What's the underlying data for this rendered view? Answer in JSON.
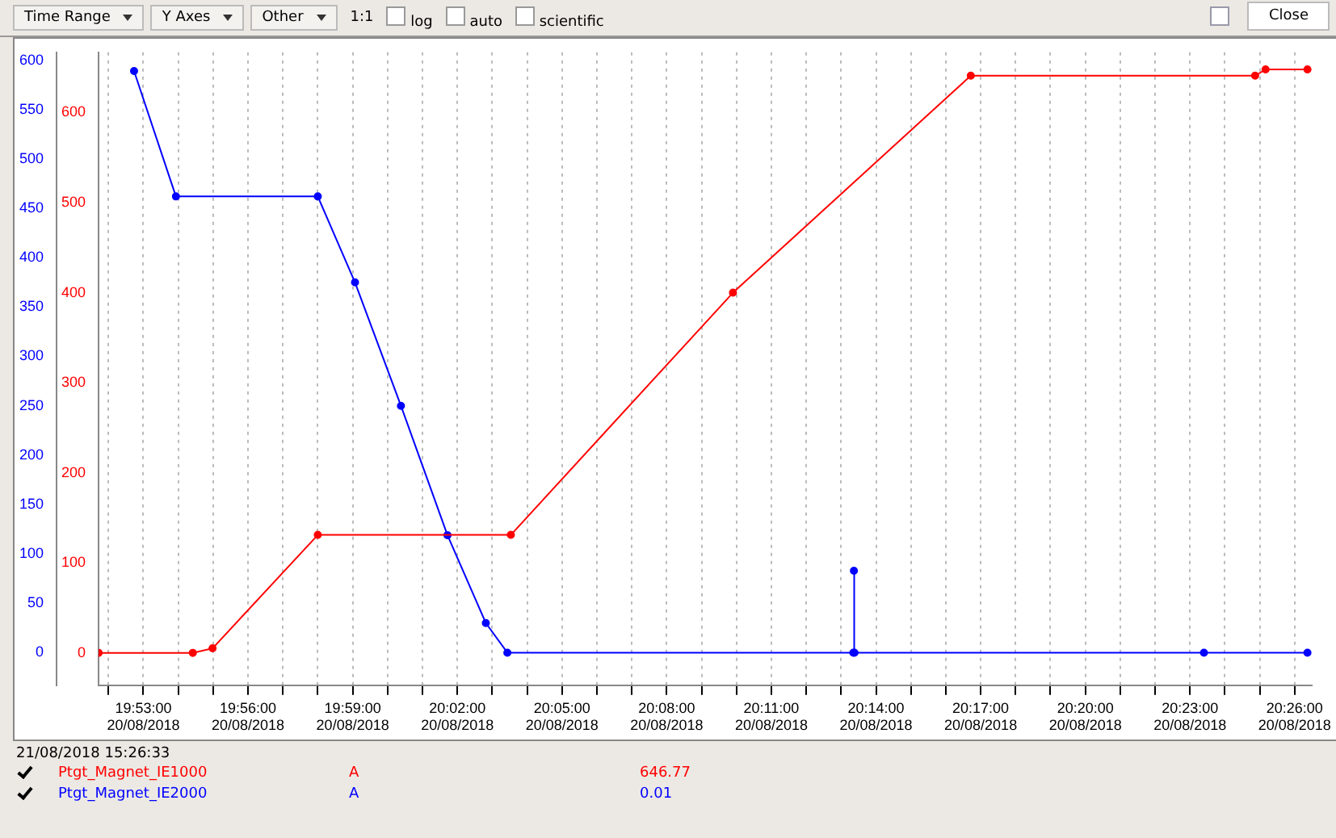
{
  "chart_data": {
    "type": "line",
    "marker": "circle",
    "line_style": "solid",
    "grid": "x",
    "legend": "bottom",
    "xlim": [
      "2018-08-20T19:51:43",
      "2018-08-20T20:26:30"
    ],
    "xticks": [
      {
        "value": "2018-08-20T19:52",
        "label": null
      },
      {
        "value": "2018-08-20T19:53",
        "label": "19:53:00\n20/08/2018"
      },
      {
        "value": "2018-08-20T19:54",
        "label": null
      },
      {
        "value": "2018-08-20T19:55",
        "label": null
      },
      {
        "value": "2018-08-20T19:56",
        "label": "19:56:00\n20/08/2018"
      },
      {
        "value": "2018-08-20T19:57",
        "label": null
      },
      {
        "value": "2018-08-20T19:58",
        "label": null
      },
      {
        "value": "2018-08-20T19:59",
        "label": "19:59:00\n20/08/2018"
      },
      {
        "value": "2018-08-20T20:00",
        "label": null
      },
      {
        "value": "2018-08-20T20:01",
        "label": null
      },
      {
        "value": "2018-08-20T20:02",
        "label": "20:02:00\n20/08/2018"
      },
      {
        "value": "2018-08-20T20:03",
        "label": null
      },
      {
        "value": "2018-08-20T20:04",
        "label": null
      },
      {
        "value": "2018-08-20T20:05",
        "label": "20:05:00\n20/08/2018"
      },
      {
        "value": "2018-08-20T20:06",
        "label": null
      },
      {
        "value": "2018-08-20T20:07",
        "label": null
      },
      {
        "value": "2018-08-20T20:08",
        "label": "20:08:00\n20/08/2018"
      },
      {
        "value": "2018-08-20T20:09",
        "label": null
      },
      {
        "value": "2018-08-20T20:10",
        "label": null
      },
      {
        "value": "2018-08-20T20:11",
        "label": "20:11:00\n20/08/2018"
      },
      {
        "value": "2018-08-20T20:12",
        "label": null
      },
      {
        "value": "2018-08-20T20:13",
        "label": null
      },
      {
        "value": "2018-08-20T20:14",
        "label": "20:14:00\n20/08/2018"
      },
      {
        "value": "2018-08-20T20:15",
        "label": null
      },
      {
        "value": "2018-08-20T20:16",
        "label": null
      },
      {
        "value": "2018-08-20T20:17",
        "label": "20:17:00\n20/08/2018"
      },
      {
        "value": "2018-08-20T20:18",
        "label": null
      },
      {
        "value": "2018-08-20T20:19",
        "label": null
      },
      {
        "value": "2018-08-20T20:20",
        "label": "20:20:00\n20/08/2018"
      },
      {
        "value": "2018-08-20T20:21",
        "label": null
      },
      {
        "value": "2018-08-20T20:22",
        "label": null
      },
      {
        "value": "2018-08-20T20:23",
        "label": "20:23:00\n20/08/2018"
      },
      {
        "value": "2018-08-20T20:24",
        "label": null
      },
      {
        "value": "2018-08-20T20:25",
        "label": null
      },
      {
        "value": "2018-08-20T20:26",
        "label": "20:26:00\n20/08/2018"
      }
    ],
    "ylim": [
      -33,
      608
    ],
    "yticks": [
      0,
      50,
      100,
      150,
      200,
      250,
      300,
      350,
      400,
      450,
      500,
      550,
      600
    ],
    "y2lim": [
      -36,
      667
    ],
    "y2ticks": [
      0,
      100,
      200,
      300,
      400,
      500,
      600
    ],
    "series": [
      {
        "name": "Ptgt_Magnet_IE1000",
        "color": "#ff0000",
        "axis": "y2",
        "x": [
          "2018-08-20T19:51:43",
          "2018-08-20T19:54:25",
          "2018-08-20T19:54:59",
          "2018-08-20T19:58:00",
          "2018-08-20T20:03:32",
          "2018-08-20T20:09:54",
          "2018-08-20T20:16:43",
          "2018-08-20T20:24:52",
          "2018-08-20T20:25:10",
          "2018-08-20T20:26:22"
        ],
        "values": [
          0,
          0,
          5,
          131,
          131,
          400,
          641,
          641,
          648,
          648
        ]
      },
      {
        "name": "Ptgt_Magnet_IE2000",
        "color": "#0000ff",
        "axis": "y",
        "x": [
          "2018-08-20T19:52:44",
          "2018-08-20T19:53:56",
          "2018-08-20T19:58:00",
          "2018-08-20T19:59:04",
          "2018-08-20T20:00:23",
          "2018-08-20T20:01:43",
          "2018-08-20T20:02:49",
          "2018-08-20T20:03:26",
          "2018-08-20T20:13:21",
          "2018-08-20T20:13:22",
          "2018-08-20T20:13:23",
          "2018-08-20T20:23:24",
          "2018-08-20T20:26:22"
        ],
        "values": [
          589,
          462,
          462,
          375,
          250,
          119,
          30,
          0,
          0,
          83,
          0,
          0,
          0
        ]
      }
    ],
    "annotations": [
      "Time Range",
      "Y Axes",
      "Other",
      "1:1",
      "log",
      "auto",
      "scientific",
      "Close",
      "21/08/2018 15:26:33",
      "A",
      "646.77",
      "A",
      "0.01"
    ]
  }
}
